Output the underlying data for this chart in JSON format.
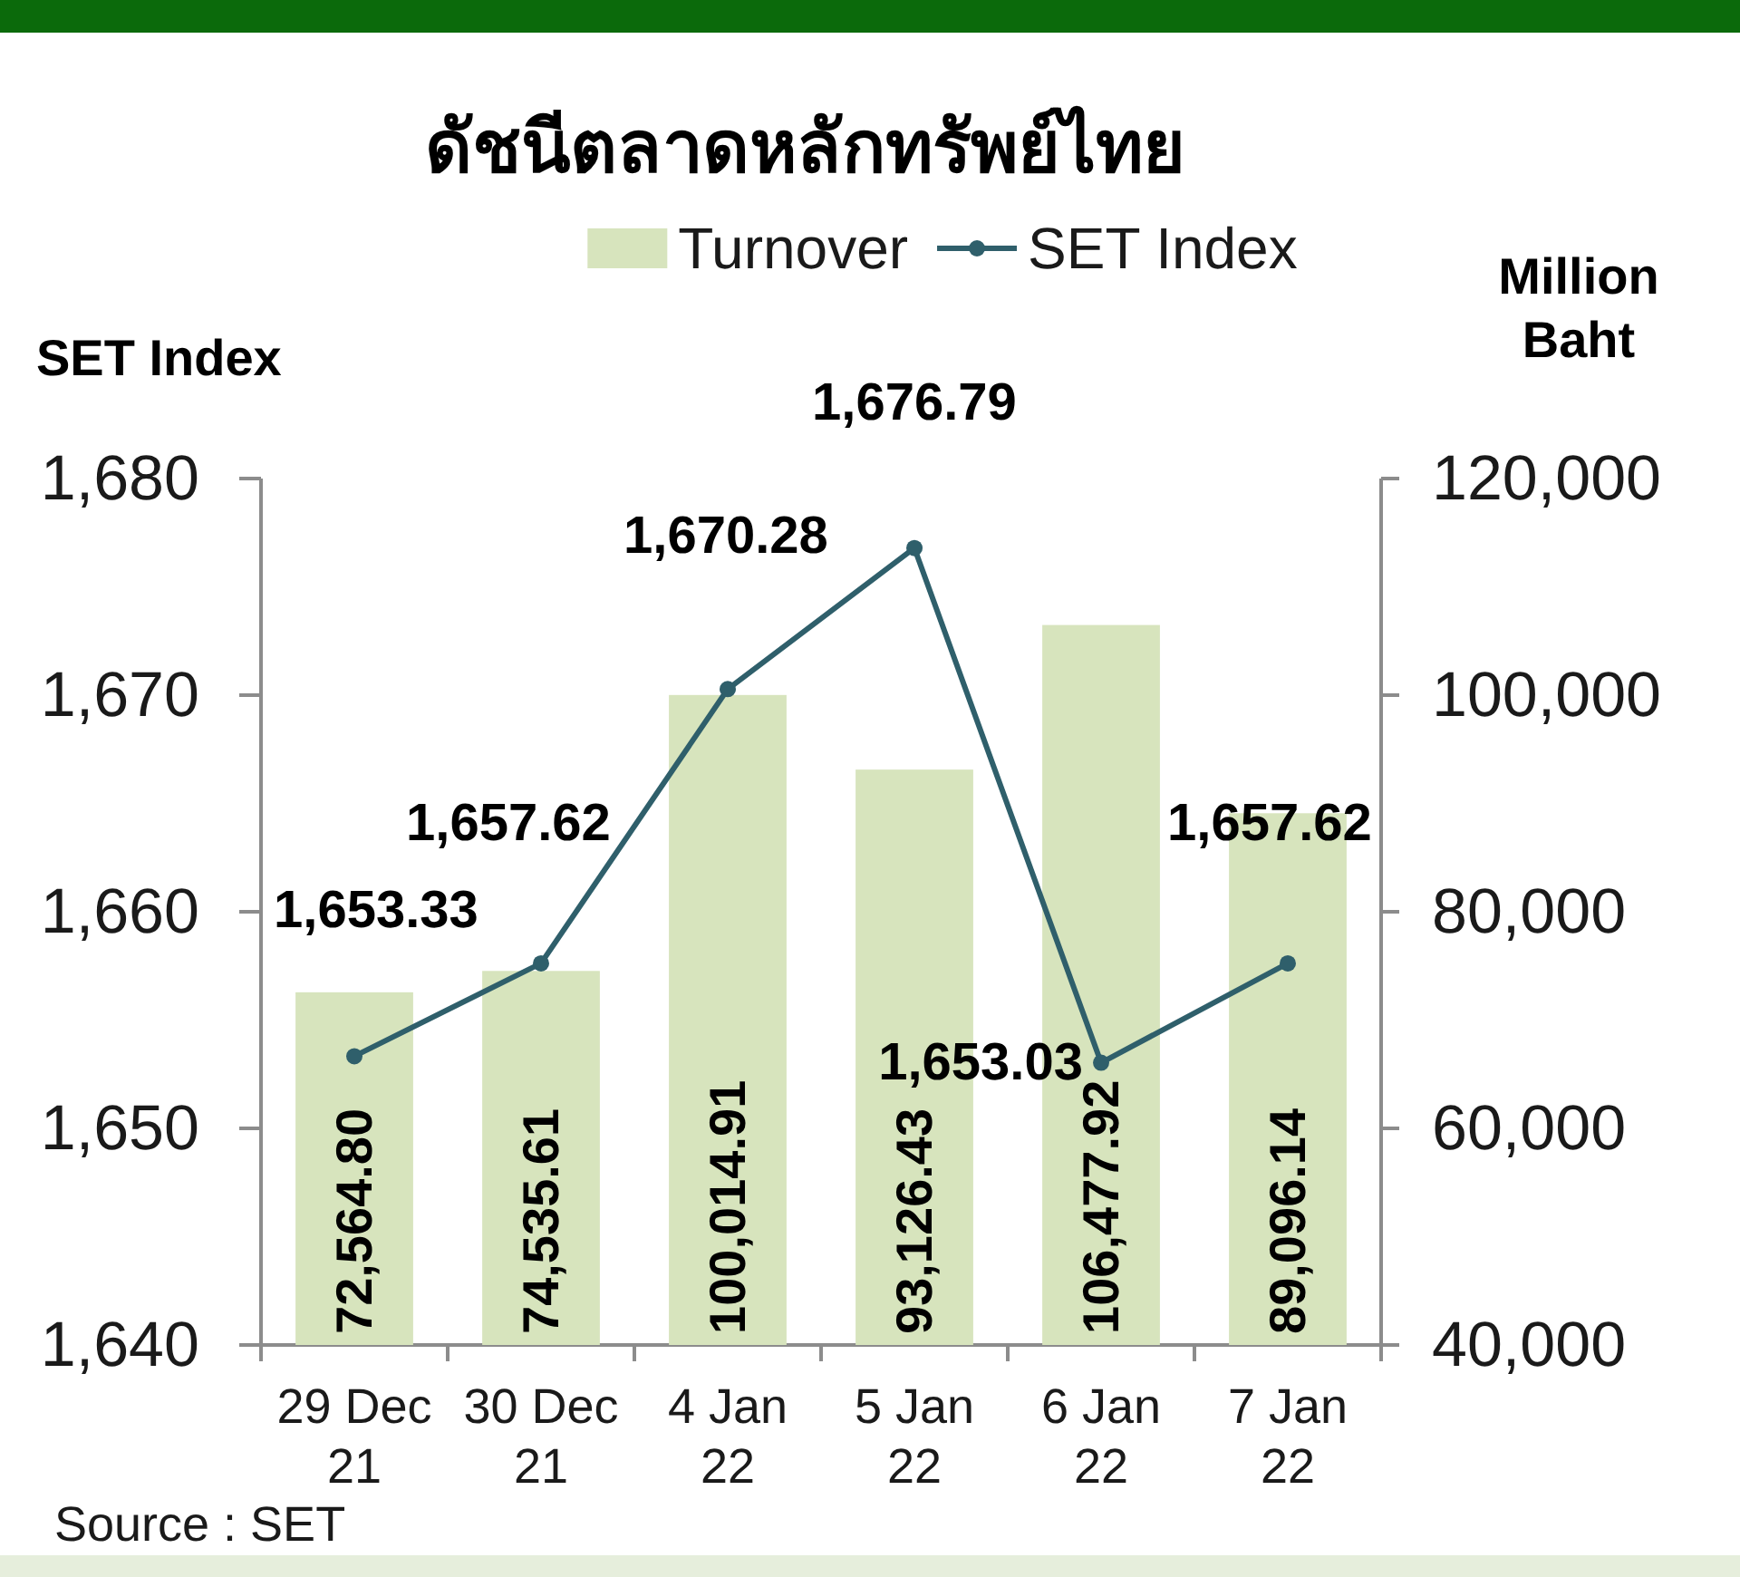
{
  "chart_data": {
    "type": "bar",
    "title": "ดัชนีตลาดหลักทรัพย์ไทย",
    "ylabel": "SET Index",
    "y2label": "Million Baht",
    "categories": [
      "29 Dec 21",
      "30 Dec 21",
      "4 Jan 22",
      "5 Jan 22",
      "6 Jan 22",
      "7 Jan 22"
    ],
    "series": [
      {
        "name": "Turnover",
        "axis": "y2",
        "color": "#d7e4bd",
        "values": [
          72564.8,
          74535.61,
          100014.91,
          93126.43,
          106477.92,
          89096.14
        ],
        "value_labels": [
          "72,564.80",
          "74,535.61",
          "100,014.91",
          "93,126.43",
          "106,477.92",
          "89,096.14"
        ]
      },
      {
        "name": "SET Index",
        "type": "line",
        "axis": "y",
        "color": "#2f5f6b",
        "values": [
          1653.33,
          1657.62,
          1670.28,
          1676.79,
          1653.03,
          1657.62
        ],
        "value_labels": [
          "1,653.33",
          "1,657.62",
          "1,670.28",
          "1,676.79",
          "1,653.03",
          "1,657.62"
        ]
      }
    ],
    "ylim": [
      1640,
      1680
    ],
    "yticks": [
      {
        "value": 1640,
        "label": "1,640"
      },
      {
        "value": 1650,
        "label": "1,650"
      },
      {
        "value": 1660,
        "label": "1,660"
      },
      {
        "value": 1670,
        "label": "1,670"
      },
      {
        "value": 1680,
        "label": "1,680"
      }
    ],
    "y2lim": [
      40000,
      120000
    ],
    "y2ticks": [
      {
        "value": 40000,
        "label": "40,000"
      },
      {
        "value": 60000,
        "label": "60,000"
      },
      {
        "value": 80000,
        "label": "80,000"
      },
      {
        "value": 100000,
        "label": "100,000"
      },
      {
        "value": 120000,
        "label": "120,000"
      }
    ],
    "legend": "top",
    "marker": "circle",
    "annotations": [
      "Source : SET"
    ]
  }
}
